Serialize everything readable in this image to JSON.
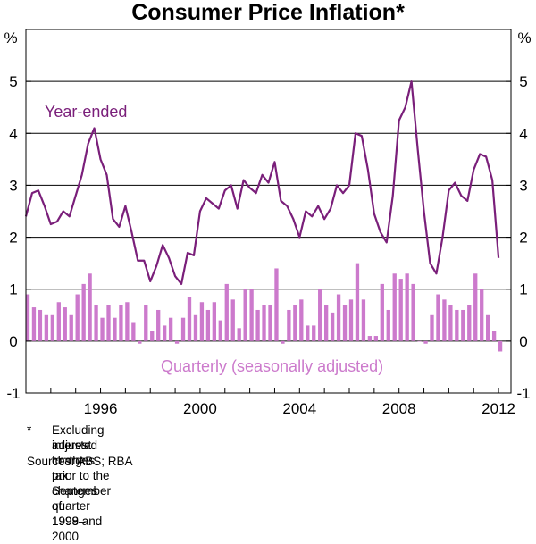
{
  "chart_data": {
    "type": "line",
    "title": "Consumer Price Inflation*",
    "ylabel_left": "%",
    "ylabel_right": "%",
    "ylim": [
      -1,
      6
    ],
    "yticks": [
      -1,
      0,
      1,
      2,
      3,
      4,
      5
    ],
    "xlim": [
      1993.0,
      2012.5
    ],
    "xticks": [
      1996,
      2000,
      2004,
      2008,
      2012
    ],
    "series": [
      {
        "name": "Year-ended",
        "kind": "line",
        "color": "#7a1f7a",
        "start": 1993.0,
        "step": 0.25,
        "values": [
          2.4,
          2.85,
          2.9,
          2.6,
          2.25,
          2.3,
          2.5,
          2.4,
          2.8,
          3.2,
          3.8,
          4.1,
          3.5,
          3.2,
          2.35,
          2.2,
          2.6,
          2.1,
          1.55,
          1.55,
          1.15,
          1.45,
          1.85,
          1.6,
          1.25,
          1.1,
          1.7,
          1.65,
          2.5,
          2.75,
          2.65,
          2.55,
          2.9,
          3.0,
          2.55,
          3.1,
          2.95,
          2.85,
          3.2,
          3.05,
          3.45,
          2.7,
          2.6,
          2.35,
          2.0,
          2.5,
          2.4,
          2.6,
          2.35,
          2.55,
          3.0,
          2.85,
          3.0,
          4.0,
          3.95,
          3.3,
          2.45,
          2.1,
          1.9,
          2.8,
          4.25,
          4.5,
          5.0,
          3.7,
          2.5,
          1.5,
          1.3,
          2.0,
          2.9,
          3.05,
          2.8,
          2.7,
          3.3,
          3.6,
          3.55,
          3.1,
          1.6
        ]
      },
      {
        "name": "Quarterly (seasonally adjusted)",
        "kind": "bar",
        "color": "#cc7acc",
        "start": 1993.0,
        "step": 0.25,
        "values": [
          0.9,
          0.65,
          0.6,
          0.5,
          0.5,
          0.75,
          0.65,
          0.5,
          0.9,
          1.1,
          1.3,
          0.7,
          0.45,
          0.7,
          0.45,
          0.7,
          0.75,
          0.35,
          -0.05,
          0.7,
          0.2,
          0.6,
          0.3,
          0.45,
          -0.05,
          0.45,
          0.85,
          0.5,
          0.75,
          0.6,
          0.75,
          0.4,
          1.1,
          0.8,
          0.25,
          1.0,
          1.0,
          0.6,
          0.7,
          0.7,
          1.4,
          -0.05,
          0.6,
          0.7,
          0.8,
          0.3,
          0.3,
          1.0,
          0.7,
          0.55,
          0.9,
          0.7,
          0.8,
          1.5,
          0.8,
          0.1,
          0.1,
          1.1,
          0.6,
          1.3,
          1.2,
          1.3,
          1.1,
          0.0,
          -0.05,
          0.5,
          0.9,
          0.8,
          0.7,
          0.6,
          0.6,
          0.7,
          1.3,
          1.0,
          0.5,
          0.2,
          -0.2
        ]
      }
    ],
    "labels": {
      "line": "Year-ended",
      "bars": "Quarterly (seasonally adjusted)"
    }
  },
  "footnote": {
    "marker": "*",
    "line1": "Excluding interest charges prior to the September quarter 1998 and",
    "line2": "adjusted for the tax changes of 1999–2000"
  },
  "sources": "Sources: ABS; RBA"
}
